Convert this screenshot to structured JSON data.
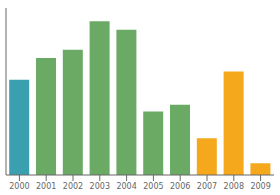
{
  "chart_data": {
    "type": "bar",
    "categories": [
      "2000",
      "2001",
      "2002",
      "2003",
      "2004",
      "2005",
      "2006",
      "2007",
      "2008",
      "2009"
    ],
    "values": [
      57,
      70,
      75,
      92,
      87,
      38,
      42,
      22,
      62,
      7
    ],
    "colors": [
      "#3aa0b0",
      "#6aaa64",
      "#6aaa64",
      "#6aaa64",
      "#6aaa64",
      "#6aaa64",
      "#6aaa64",
      "#f5a81c",
      "#f5a81c",
      "#f5a81c"
    ],
    "ylim": [
      0,
      100
    ],
    "grid": false,
    "tick_labels": "x"
  }
}
